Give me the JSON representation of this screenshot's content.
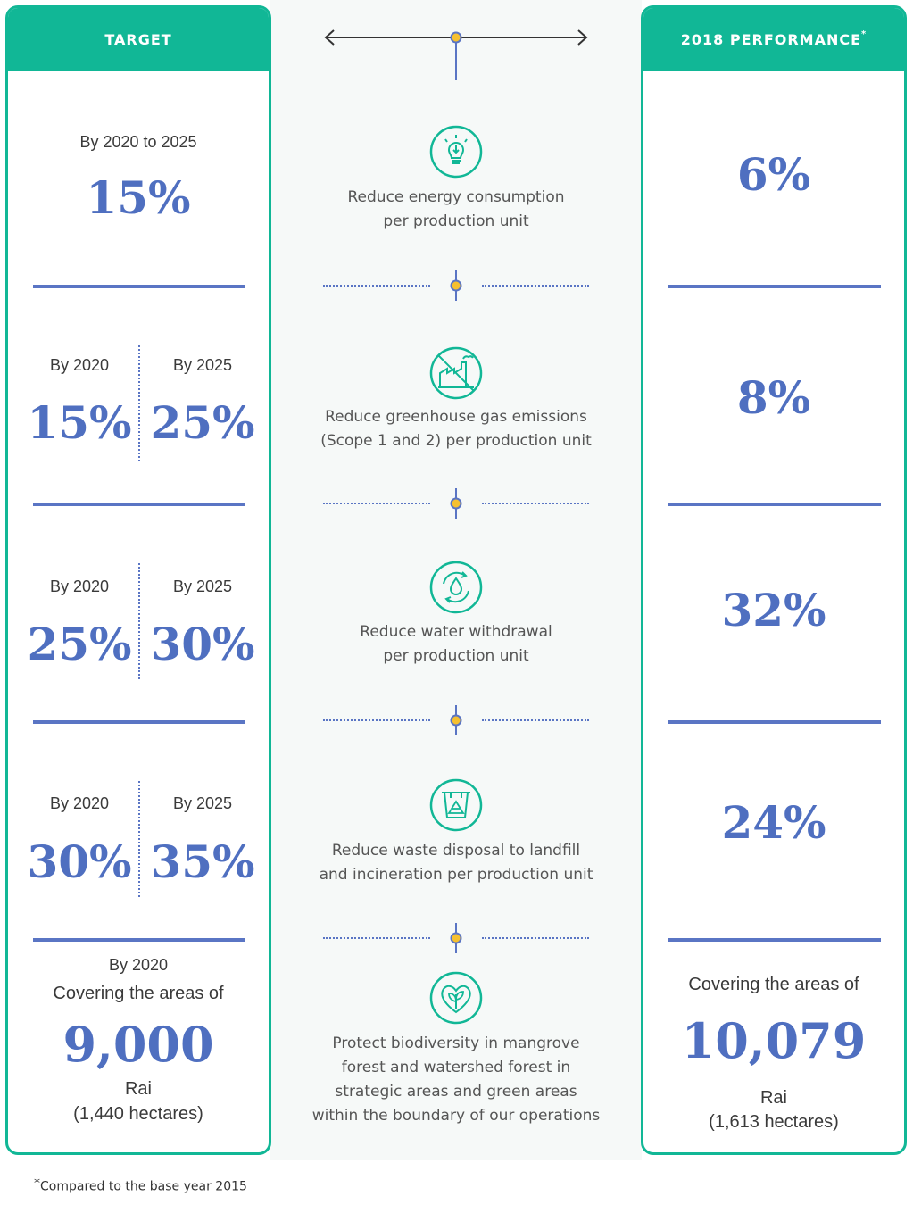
{
  "header": {
    "target_label": "TARGET",
    "performance_label": "2018 PERFORMANCE",
    "performance_mark": "*"
  },
  "rows": [
    {
      "target_period": "By 2020 to 2025",
      "target_value": "15%",
      "icon": "lightbulb-icon",
      "description_line1": "Reduce energy consumption",
      "description_line2": "per production unit",
      "performance": "6%"
    },
    {
      "target_a_period": "By 2020",
      "target_a_value": "15%",
      "target_b_period": "By 2025",
      "target_b_value": "25%",
      "icon": "factory-emissions-icon",
      "description_line1": "Reduce greenhouse gas emissions",
      "description_line2": "(Scope 1 and 2) per production unit",
      "performance": "8%"
    },
    {
      "target_a_period": "By 2020",
      "target_a_value": "25%",
      "target_b_period": "By 2025",
      "target_b_value": "30%",
      "icon": "water-drop-cycle-icon",
      "description_line1": "Reduce water withdrawal",
      "description_line2": "per production unit",
      "performance": "32%"
    },
    {
      "target_a_period": "By 2020",
      "target_a_value": "30%",
      "target_b_period": "By 2025",
      "target_b_value": "35%",
      "icon": "recycle-bin-icon",
      "description_line1": "Reduce waste disposal to landfill",
      "description_line2": "and incineration per production unit",
      "performance": "24%"
    },
    {
      "target_period": "By 2020",
      "target_line": "Covering the areas of",
      "target_value": "9,000",
      "target_unit": "Rai",
      "target_unit2": "(1,440 hectares)",
      "icon": "heart-sprout-icon",
      "description_line1": "Protect biodiversity in mangrove",
      "description_line2": "forest and watershed forest in",
      "description_line3": "strategic areas and green areas",
      "description_line4": "within the boundary of our operations",
      "performance_line": "Covering the areas of",
      "performance": "10,079",
      "performance_unit": "Rai",
      "performance_unit2": "(1,613 hectares)"
    }
  ],
  "footnote": {
    "mark": "*",
    "text": "Compared to the base year 2015"
  },
  "colors": {
    "teal": "#11b796",
    "blue": "#4f6fc0",
    "marker": "#f5c030"
  }
}
